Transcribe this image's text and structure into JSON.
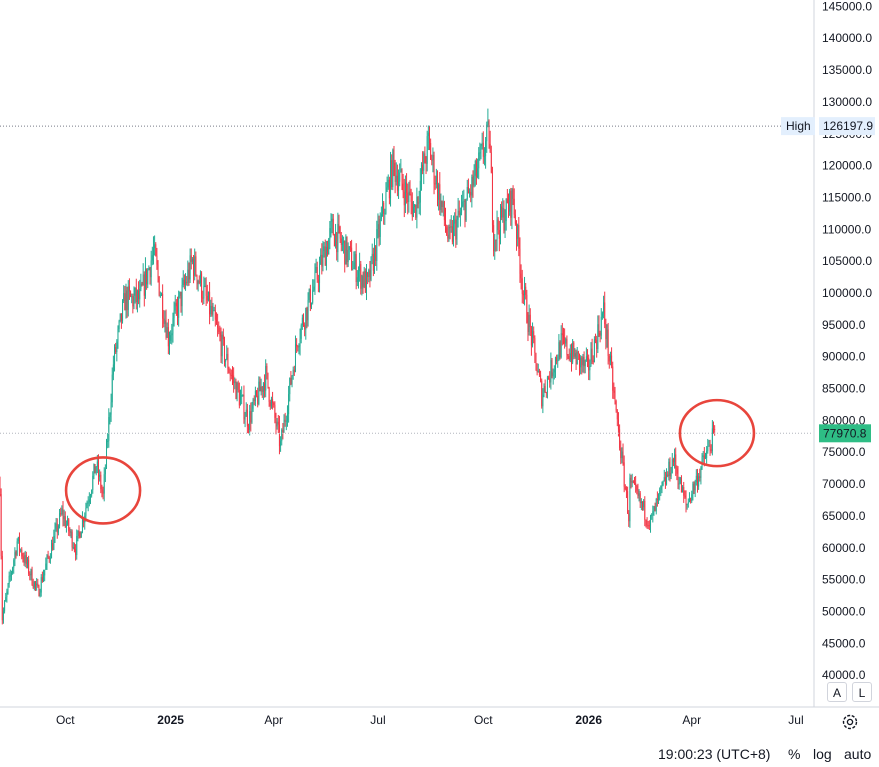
{
  "chart_data": {
    "type": "candlestick",
    "x_tick_labels": [
      "Oct",
      "2025",
      "Apr",
      "Jul",
      "Oct",
      "2026",
      "Apr",
      "Jul"
    ],
    "x_tick_bold": [
      false,
      true,
      false,
      false,
      false,
      true,
      false,
      false
    ],
    "x_tick_dates": [
      "2024-10-01",
      "2025-01-01",
      "2025-04-01",
      "2025-07-01",
      "2025-10-01",
      "2026-01-01",
      "2026-04-01",
      "2026-07-01"
    ],
    "x_range": [
      "2024-08-05",
      "2026-07-15"
    ],
    "y_range": [
      35000,
      146000
    ],
    "y_tick_values": [
      40000,
      45000,
      50000,
      55000,
      60000,
      65000,
      70000,
      75000,
      80000,
      85000,
      90000,
      95000,
      100000,
      105000,
      110000,
      115000,
      120000,
      125000,
      130000,
      135000,
      140000,
      145000
    ],
    "y_tick_labels": [
      "40000.0",
      "45000.0",
      "50000.0",
      "55000.0",
      "60000.0",
      "65000.0",
      "70000.0",
      "75000.0",
      "80000.0",
      "85000.0",
      "90000.0",
      "95000.0",
      "100000.0",
      "105000.0",
      "110000.0",
      "115000.0",
      "120000.0",
      "125000.0",
      "130000.0",
      "135000.0",
      "140000.0",
      "145000.0"
    ],
    "price_anchors": [
      [
        "2024-08-05",
        70000
      ],
      [
        "2024-08-07",
        49000
      ],
      [
        "2024-08-20",
        61000
      ],
      [
        "2024-09-07",
        53000
      ],
      [
        "2024-09-28",
        65500
      ],
      [
        "2024-10-10",
        60000
      ],
      [
        "2024-10-28",
        73000
      ],
      [
        "2024-11-03",
        68000
      ],
      [
        "2024-11-12",
        89000
      ],
      [
        "2024-11-22",
        99000
      ],
      [
        "2024-12-05",
        99000
      ],
      [
        "2024-12-17",
        106500
      ],
      [
        "2024-12-30",
        93000
      ],
      [
        "2025-01-20",
        105000
      ],
      [
        "2025-02-05",
        97000
      ],
      [
        "2025-02-25",
        86000
      ],
      [
        "2025-03-10",
        80000
      ],
      [
        "2025-03-25",
        87000
      ],
      [
        "2025-04-07",
        76000
      ],
      [
        "2025-04-22",
        93000
      ],
      [
        "2025-05-22",
        110000
      ],
      [
        "2025-06-22",
        101000
      ],
      [
        "2025-07-14",
        120000
      ],
      [
        "2025-08-02",
        113000
      ],
      [
        "2025-08-14",
        123500
      ],
      [
        "2025-09-01",
        108000
      ],
      [
        "2025-09-20",
        116000
      ],
      [
        "2025-10-06",
        125000
      ],
      [
        "2025-10-10",
        109000
      ],
      [
        "2025-10-27",
        115000
      ],
      [
        "2025-11-05",
        100000
      ],
      [
        "2025-11-21",
        84000
      ],
      [
        "2025-12-08",
        92000
      ],
      [
        "2025-12-31",
        88000
      ],
      [
        "2026-01-14",
        97000
      ],
      [
        "2026-02-05",
        65000
      ],
      [
        "2026-02-06",
        70000
      ],
      [
        "2026-02-24",
        64000
      ],
      [
        "2026-03-16",
        74000
      ],
      [
        "2026-03-27",
        66500
      ],
      [
        "2026-04-21",
        77970
      ]
    ],
    "high": {
      "label": "High",
      "value": 126197.9,
      "value_label": "126197.9"
    },
    "last": {
      "value": 77970.8,
      "value_label": "77970.8",
      "color": "#2ebd85"
    },
    "colors": {
      "up": "#22ab94",
      "down": "#f23645",
      "grid": "#e0e3eb",
      "annotation": "#e8453c"
    },
    "annotations": [
      {
        "type": "ellipse",
        "date": "2024-11-03",
        "price": 69000
      },
      {
        "type": "ellipse",
        "date": "2026-04-23",
        "price": 78000
      }
    ]
  },
  "controls": {
    "auto_scale_label": "A",
    "lock_label": "L",
    "time": "19:00:23 (UTC+8)",
    "percent": "%",
    "log": "log",
    "auto": "auto",
    "settings_icon": "gear-icon"
  }
}
